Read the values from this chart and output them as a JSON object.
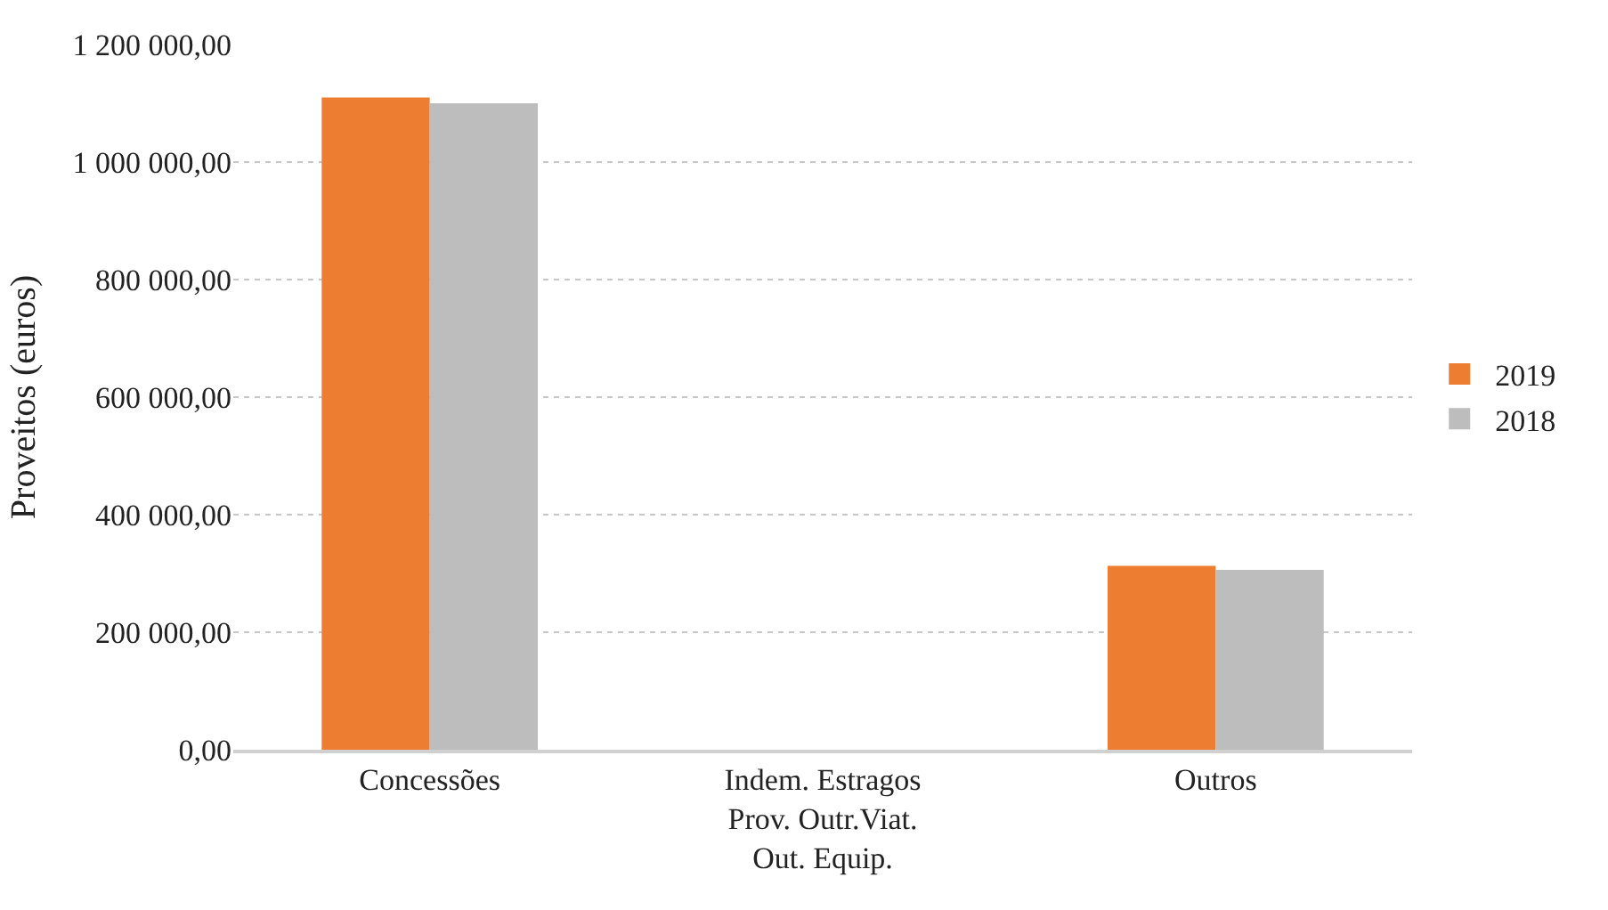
{
  "chart_data": {
    "type": "bar",
    "ylabel": "Proveitos (euros)",
    "categories": [
      "Concessões",
      "Indem. Estragos Prov. Outr.Viat. Out. Equip.",
      "Outros"
    ],
    "series": [
      {
        "name": "2019",
        "color": "#ed7d31",
        "values": [
          1110000,
          0,
          313000
        ]
      },
      {
        "name": "2018",
        "color": "#bdbdbd",
        "values": [
          1100000,
          0,
          306000
        ]
      }
    ],
    "ylim": [
      0,
      1200000
    ],
    "yticks": [
      {
        "value": 0,
        "label": "0,00"
      },
      {
        "value": 200000,
        "label": "200 000,00"
      },
      {
        "value": 400000,
        "label": "400 000,00"
      },
      {
        "value": 600000,
        "label": "600 000,00"
      },
      {
        "value": 800000,
        "label": "800 000,00"
      },
      {
        "value": 1000000,
        "label": "1 000 000,00"
      },
      {
        "value": 1200000,
        "label": "1 200 000,00"
      }
    ],
    "grid": "y",
    "legend": "right"
  }
}
